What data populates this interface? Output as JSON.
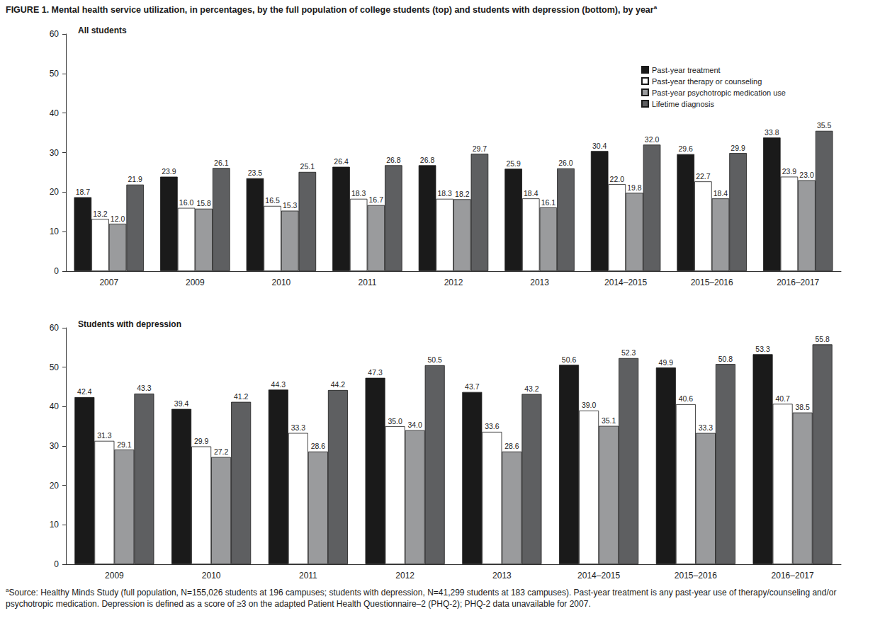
{
  "title": "FIGURE 1. Mental health service utilization, in percentages, by the full population of college students (top) and students with depression (bottom), by year",
  "footnote_marker": "a",
  "footnote": "Source: Healthy Minds Study (full population, N=155,026 students at 196 campuses; students with depression, N=41,299 students at 183 campuses). Past-year treatment is any past-year use of therapy/counseling and/or psychotropic medication. Depression is defined as a score of ≥3 on the adapted Patient Health Questionnaire–2 (PHQ-2); PHQ-2 data unavailable for 2007.",
  "chart_data": [
    {
      "type": "bar",
      "title": "All students",
      "categories": [
        "2007",
        "2009",
        "2010",
        "2011",
        "2012",
        "2013",
        "2014–2015",
        "2015–2016",
        "2016–2017"
      ],
      "series": [
        {
          "name": "Past-year treatment",
          "color": "#1a1a1a",
          "values": [
            18.7,
            23.9,
            23.5,
            26.4,
            26.8,
            25.9,
            30.4,
            29.6,
            33.8
          ],
          "value_labels": [
            "18.7",
            "23.9",
            "23.5",
            "26.4",
            "26.8",
            "25.9",
            "30.4",
            "29.6",
            "33.8"
          ]
        },
        {
          "name": "Past-year therapy or counseling",
          "color": "#ffffff",
          "values": [
            13.2,
            16.0,
            16.5,
            18.3,
            18.3,
            18.4,
            22.0,
            22.7,
            23.9
          ],
          "value_labels": [
            "13.2",
            "16.0",
            "16.5",
            "18.3",
            "18.3",
            "18.4",
            "22.0",
            "22.7",
            "23.9"
          ]
        },
        {
          "name": "Past-year psychotropic medication use",
          "color": "#9a9b9d",
          "values": [
            12.0,
            15.8,
            15.3,
            16.7,
            18.2,
            16.1,
            19.8,
            18.4,
            23.0
          ],
          "value_labels": [
            "12.0",
            "15.8",
            "15.3",
            "16.7",
            "18.2",
            "16.1",
            "19.8",
            "18.4",
            "23.0"
          ]
        },
        {
          "name": "Lifetime diagnosis",
          "color": "#5e5f61",
          "values": [
            21.9,
            26.1,
            25.1,
            26.8,
            29.7,
            26.0,
            32.0,
            29.9,
            35.5
          ],
          "value_labels": [
            "21.9",
            "26.1",
            "25.1",
            "26.8",
            "29.7",
            "26.0",
            "32.0",
            "29.9",
            "35.5"
          ]
        }
      ],
      "ylim": [
        0,
        60
      ],
      "yticks": [
        0,
        10,
        20,
        30,
        40,
        50,
        60
      ],
      "grid": false,
      "data_labels": true,
      "legend": "upper right"
    },
    {
      "type": "bar",
      "title": "Students with depression",
      "categories": [
        "2009",
        "2010",
        "2011",
        "2012",
        "2013",
        "2014–2015",
        "2015–2016",
        "2016–2017"
      ],
      "series": [
        {
          "name": "Past-year treatment",
          "color": "#1a1a1a",
          "values": [
            42.4,
            39.4,
            44.3,
            47.3,
            43.7,
            50.6,
            49.9,
            53.3
          ],
          "value_labels": [
            "42.4",
            "39.4",
            "44.3",
            "47.3",
            "43.7",
            "50.6",
            "49.9",
            "53.3"
          ]
        },
        {
          "name": "Past-year therapy or counseling",
          "color": "#ffffff",
          "values": [
            31.3,
            29.9,
            33.3,
            35.0,
            33.6,
            39.0,
            40.6,
            40.7
          ],
          "value_labels": [
            "31.3",
            "29.9",
            "33.3",
            "35.0",
            "33.6",
            "39.0",
            "40.6",
            "40.7"
          ]
        },
        {
          "name": "Past-year psychotropic medication use",
          "color": "#9a9b9d",
          "values": [
            29.1,
            27.2,
            28.6,
            34.0,
            28.6,
            35.1,
            33.3,
            38.5
          ],
          "value_labels": [
            "29.1",
            "27.2",
            "28.6",
            "34.0",
            "28.6",
            "35.1",
            "33.3",
            "38.5"
          ]
        },
        {
          "name": "Lifetime diagnosis",
          "color": "#5e5f61",
          "values": [
            43.3,
            41.2,
            44.2,
            50.5,
            43.2,
            52.3,
            50.8,
            55.8
          ],
          "value_labels": [
            "43.3",
            "41.2",
            "44.2",
            "50.5",
            "43.2",
            "52.3",
            "50.8",
            "55.8"
          ]
        }
      ],
      "ylim": [
        0,
        60
      ],
      "yticks": [
        0,
        10,
        20,
        30,
        40,
        50,
        60
      ],
      "grid": false,
      "data_labels": true
    }
  ]
}
